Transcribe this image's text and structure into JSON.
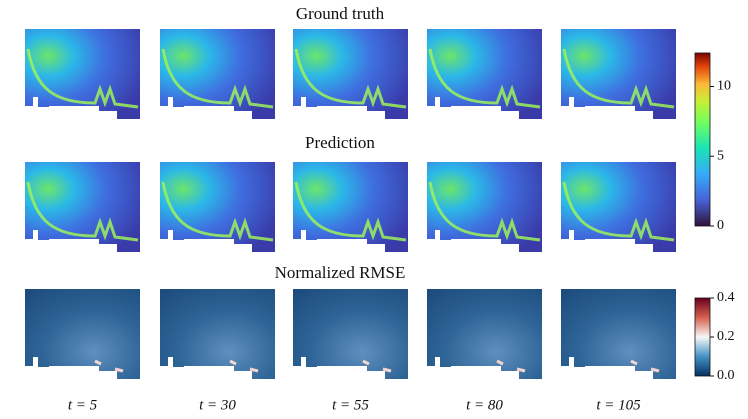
{
  "rows": [
    {
      "title": "Ground truth"
    },
    {
      "title": "Prediction"
    },
    {
      "title": "Normalized RMSE"
    }
  ],
  "columns": [
    "t = 5",
    "t = 30",
    "t = 55",
    "t = 80",
    "t = 105"
  ],
  "colorbars": [
    {
      "lim": [
        0,
        12.4
      ],
      "ticks": [
        0,
        5,
        10
      ]
    },
    {
      "lim": [
        0,
        0.4
      ],
      "ticks": [
        {
          "value": 0,
          "label": "0.0"
        },
        {
          "value": 0.2,
          "label": "0.2"
        },
        {
          "value": 0.4,
          "label": "0.4"
        }
      ]
    }
  ]
}
